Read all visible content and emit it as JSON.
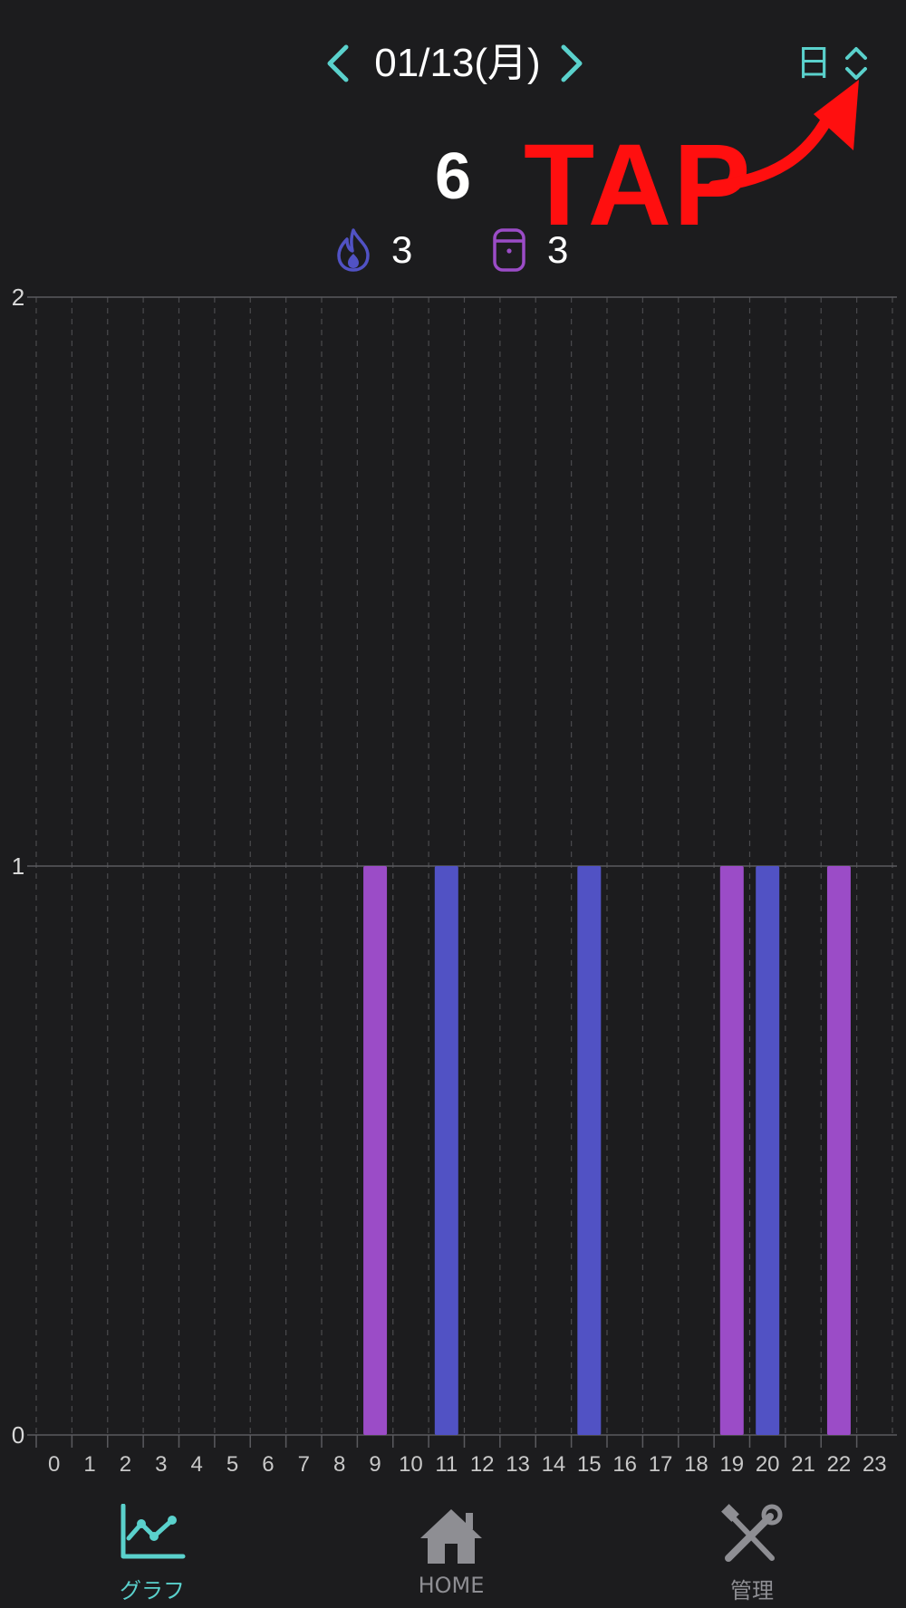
{
  "header": {
    "date_label": "01/13(月)",
    "period_label": "日"
  },
  "summary": {
    "total": "6",
    "fire_count": "3",
    "box_count": "3"
  },
  "annotation": {
    "tap_label": "TAP"
  },
  "colors": {
    "accent": "#5ad1cc",
    "fire": "#5152c4",
    "box": "#9b4cc7",
    "background": "#1c1c1e",
    "annotation": "#ff0f0f"
  },
  "icons": {
    "prev": "chevron-left-icon",
    "next": "chevron-right-icon",
    "period_toggle": "chevron-up-down-icon",
    "fire": "flame-icon",
    "box": "container-icon"
  },
  "chart_data": {
    "type": "bar",
    "categories": [
      "0",
      "1",
      "2",
      "3",
      "4",
      "5",
      "6",
      "7",
      "8",
      "9",
      "10",
      "11",
      "12",
      "13",
      "14",
      "15",
      "16",
      "17",
      "18",
      "19",
      "20",
      "21",
      "22",
      "23"
    ],
    "series": [
      {
        "values": [
          0,
          0,
          0,
          0,
          0,
          0,
          0,
          0,
          0,
          0,
          0,
          1,
          0,
          0,
          0,
          1,
          0,
          0,
          0,
          0,
          1,
          0,
          0,
          0
        ],
        "color": "#5152c4"
      },
      {
        "values": [
          0,
          0,
          0,
          0,
          0,
          0,
          0,
          0,
          0,
          1,
          0,
          0,
          0,
          0,
          0,
          0,
          0,
          0,
          0,
          1,
          0,
          0,
          1,
          0
        ],
        "color": "#9b4cc7"
      }
    ],
    "ylim": [
      0,
      2
    ],
    "yticks": [
      "0",
      "1",
      "2"
    ],
    "grid": true,
    "legend": "none"
  },
  "tabs": [
    {
      "label": "グラフ",
      "icon": "line-chart-icon",
      "active": true
    },
    {
      "label": "HOME",
      "icon": "house-icon",
      "active": false
    },
    {
      "label": "管理",
      "icon": "tools-icon",
      "active": false
    }
  ]
}
